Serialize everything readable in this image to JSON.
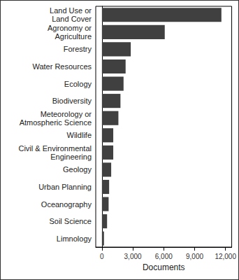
{
  "chart_data": {
    "type": "bar",
    "orientation": "horizontal",
    "categories": [
      "Land Use or\nLand Cover",
      "Agronomy or\nAgriculture",
      "Forestry",
      "Water Resources",
      "Ecology",
      "Biodiversity",
      "Meteorology or\nAtmospheric Science",
      "Wildlife",
      "Civil & Environmental\nEngineering",
      "Geology",
      "Urban Planning",
      "Oceanography",
      "Soil Science",
      "Limnology"
    ],
    "values": [
      11600,
      6100,
      2800,
      2300,
      2100,
      1800,
      1600,
      1100,
      1100,
      900,
      700,
      650,
      500,
      200
    ],
    "color": "#404040",
    "x_label": "Documents",
    "xlim": [
      -600,
      12600
    ],
    "xticks": [
      0,
      3000,
      6000,
      9000,
      12000
    ],
    "grid": false
  }
}
